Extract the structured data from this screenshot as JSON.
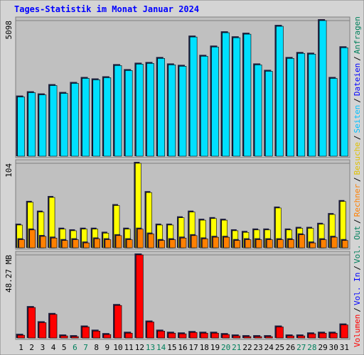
{
  "chart_data": [
    {
      "type": "bar",
      "title": "Tages-Statistik im Monat Januar 2024",
      "categories": [
        "1",
        "2",
        "3",
        "4",
        "5",
        "6",
        "7",
        "8",
        "9",
        "10",
        "11",
        "12",
        "13",
        "14",
        "15",
        "16",
        "17",
        "18",
        "19",
        "20",
        "21",
        "22",
        "23",
        "24",
        "25",
        "26",
        "27",
        "28",
        "29",
        "30",
        "31"
      ],
      "category_colors": [
        "#000000",
        "#000000",
        "#000000",
        "#000000",
        "#000000",
        "#00805c",
        "#00805c",
        "#000000",
        "#000000",
        "#000000",
        "#000000",
        "#000000",
        "#00805c",
        "#00805c",
        "#000000",
        "#000000",
        "#000000",
        "#000000",
        "#000000",
        "#00805c",
        "#00805c",
        "#000000",
        "#000000",
        "#000000",
        "#000000",
        "#000000",
        "#00805c",
        "#00805c",
        "#000000",
        "#000000",
        "#000000"
      ],
      "legend_separator": "/",
      "legend": [
        {
          "name": "Volumen",
          "color": "#ff0000"
        },
        {
          "name": "Vol. In",
          "color": "#0000ff"
        },
        {
          "name": "Vol. Out",
          "color": "#00805c"
        },
        {
          "name": "Rechner",
          "color": "#ff8000"
        },
        {
          "name": "Besuche",
          "color": "#ffff00"
        },
        {
          "name": "Seiten",
          "color": "#00c0ff"
        },
        {
          "name": "Dateien",
          "color": "#0000ff"
        },
        {
          "name": "Anfragen",
          "color": "#00805c"
        }
      ],
      "series": [
        {
          "name": "Seiten",
          "color": "#00e0ff",
          "values": [
            2227,
            2388,
            2307,
            2656,
            2361,
            2737,
            2925,
            2871,
            2951,
            3408,
            3220,
            3461,
            3488,
            3676,
            3434,
            3381,
            4481,
            3757,
            4105,
            4642,
            4454,
            4588,
            3434,
            3193,
            4883,
            3676,
            3864,
            3837,
            5098,
            2925,
            4078
          ]
        }
      ],
      "ylim": [
        0,
        5098
      ],
      "yticks": [
        5098
      ]
    },
    {
      "type": "bar",
      "series": [
        {
          "name": "Besuche",
          "color": "#ffff00",
          "values": [
            28,
            56,
            44,
            62,
            23,
            21,
            23,
            23,
            18,
            52,
            23,
            104,
            68,
            28,
            28,
            37,
            44,
            34,
            36,
            34,
            21,
            19,
            22,
            22,
            49,
            22,
            24,
            24,
            29,
            41,
            57
          ]
        },
        {
          "name": "Rechner",
          "color": "#ff8000",
          "values": [
            10,
            22,
            14,
            12,
            9,
            10,
            6,
            11,
            10,
            15,
            10,
            23,
            17,
            9,
            10,
            12,
            15,
            11,
            13,
            13,
            9,
            10,
            10,
            10,
            10,
            10,
            16,
            6,
            10,
            13,
            9
          ]
        }
      ],
      "ylim": [
        0,
        104
      ],
      "yticks": [
        104
      ]
    },
    {
      "type": "bar",
      "series": [
        {
          "name": "Volumen",
          "color": "#ff0000",
          "values": [
            1.6,
            17.7,
            8.9,
            13.7,
            1.2,
            0.8,
            6.4,
            4.0,
            2.0,
            18.9,
            2.8,
            48.27,
            9.3,
            4.0,
            2.8,
            2.4,
            3.2,
            2.8,
            2.8,
            2.0,
            1.2,
            0.8,
            0.8,
            0.8,
            6.4,
            1.2,
            1.2,
            2.4,
            2.8,
            2.8,
            7.6
          ]
        }
      ],
      "ylim": [
        0,
        48.27
      ],
      "yticks": [
        {
          "value": 48.27,
          "label": "48.27 MB"
        }
      ]
    }
  ]
}
